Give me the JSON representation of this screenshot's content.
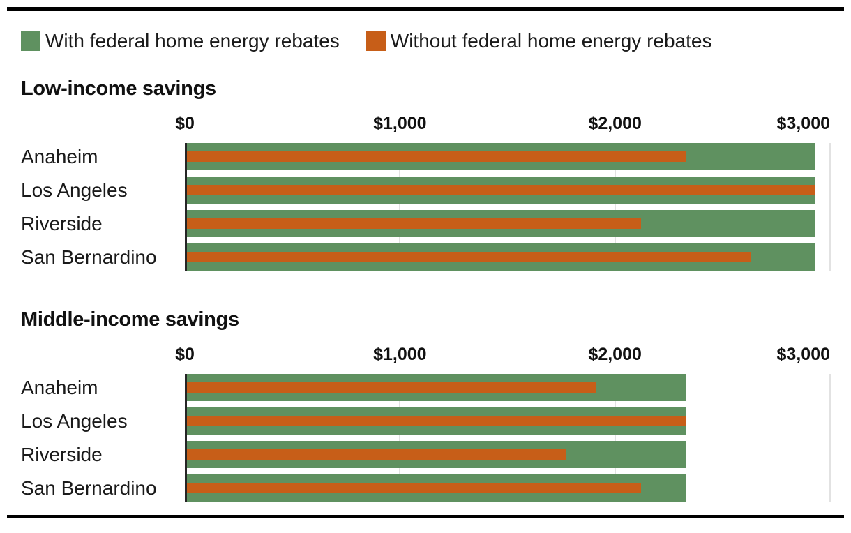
{
  "colors": {
    "with_rebates": "#5f9160",
    "without_rebates": "#c75e18",
    "grid": "#e2e2e2",
    "axis": "#262626",
    "rule": "#000000",
    "text": "#1a1a1a"
  },
  "legend": [
    {
      "label": "With federal home energy rebates",
      "series": "with_rebates"
    },
    {
      "label": "Without federal home energy rebates",
      "series": "without_rebates"
    }
  ],
  "chart_data": [
    {
      "type": "bar",
      "orientation": "horizontal",
      "title": "Low-income savings",
      "categories": [
        "Anaheim",
        "Los Angeles",
        "Riverside",
        "San Bernardino"
      ],
      "series": [
        {
          "name": "With federal home energy rebates",
          "color_key": "with_rebates",
          "values": [
            2930,
            2930,
            2930,
            2930
          ]
        },
        {
          "name": "Without federal home energy rebates",
          "color_key": "without_rebates",
          "values": [
            2330,
            2930,
            2120,
            2630
          ]
        }
      ],
      "x_ticks": [
        "$0",
        "$1,000",
        "$2,000",
        "$3,000"
      ],
      "x_tick_values": [
        0,
        1000,
        2000,
        3000
      ],
      "xlim": [
        0,
        3000
      ],
      "grid": true,
      "legend_position": "top"
    },
    {
      "type": "bar",
      "orientation": "horizontal",
      "title": "Middle-income savings",
      "categories": [
        "Anaheim",
        "Los Angeles",
        "Riverside",
        "San Bernardino"
      ],
      "series": [
        {
          "name": "With federal home energy rebates",
          "color_key": "with_rebates",
          "values": [
            2330,
            2330,
            2330,
            2330
          ]
        },
        {
          "name": "Without federal home energy rebates",
          "color_key": "without_rebates",
          "values": [
            1910,
            2330,
            1770,
            2120
          ]
        }
      ],
      "x_ticks": [
        "$0",
        "$1,000",
        "$2,000",
        "$3,000"
      ],
      "x_tick_values": [
        0,
        1000,
        2000,
        3000
      ],
      "xlim": [
        0,
        3000
      ],
      "grid": true,
      "legend_position": "top"
    }
  ]
}
